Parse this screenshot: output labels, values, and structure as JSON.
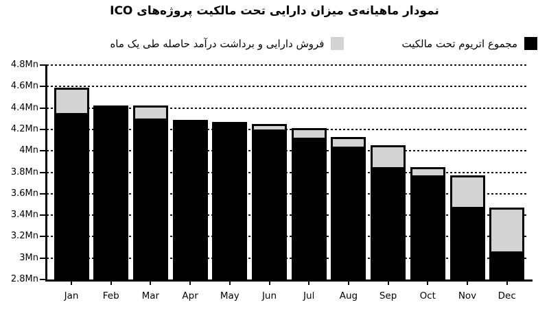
{
  "title": "نمودار ماهیانه‌ی میزان دارایی تحت مالکیت پروژه‌های ICO",
  "legend": {
    "items": [
      {
        "label": "مجموع اتریوم تحت مالکیت",
        "color": "#000000"
      },
      {
        "label": "فروش دارایی و برداشت درآمد حاصله طی یک ماه",
        "color": "#d3d3d3"
      }
    ]
  },
  "colors": {
    "owned_bar": "#000000",
    "sold_bar": "#d3d3d3",
    "grid": "#111111",
    "background": "#ffffff"
  },
  "chart_data": {
    "type": "bar",
    "stacked": true,
    "title": "نمودار ماهیانه‌ی میزان دارایی تحت مالکیت پروژه‌های ICO",
    "categories": [
      "Jan",
      "Feb",
      "Mar",
      "Apr",
      "May",
      "Jun",
      "Jul",
      "Aug",
      "Sep",
      "Oct",
      "Nov",
      "Dec"
    ],
    "series": [
      {
        "name": "مجموع اتریوم تحت مالکیت",
        "color": "#000000",
        "values": [
          4.35,
          4.42,
          4.3,
          4.29,
          4.27,
          4.2,
          4.12,
          4.04,
          3.85,
          3.77,
          3.48,
          3.06
        ]
      },
      {
        "name": "فروش دارایی و برداشت درآمد حاصله طی یک ماه",
        "color": "#d3d3d3",
        "values": [
          0.24,
          0.0,
          0.12,
          0.0,
          0.0,
          0.05,
          0.09,
          0.09,
          0.2,
          0.08,
          0.29,
          0.41
        ]
      }
    ],
    "totals": [
      4.59,
      4.42,
      4.42,
      4.29,
      4.27,
      4.25,
      4.21,
      4.13,
      4.05,
      3.85,
      3.77,
      3.47
    ],
    "unit": "Mn",
    "ylim": [
      2.8,
      4.8
    ],
    "ytick_labels": [
      "4.8Mn",
      "4.6Mn",
      "4.4Mn",
      "4.2Mn",
      "4Mn",
      "3.8Mn",
      "3.6Mn",
      "3.4Mn",
      "3.2Mn",
      "3Mn",
      "2.8Mn"
    ],
    "ytick_values": [
      4.8,
      4.6,
      4.4,
      4.2,
      4.0,
      3.8,
      3.6,
      3.4,
      3.2,
      3.0,
      2.8
    ],
    "xlabel": "",
    "ylabel": "",
    "grid": "horizontal-dotted",
    "legend_position": "top-right"
  }
}
